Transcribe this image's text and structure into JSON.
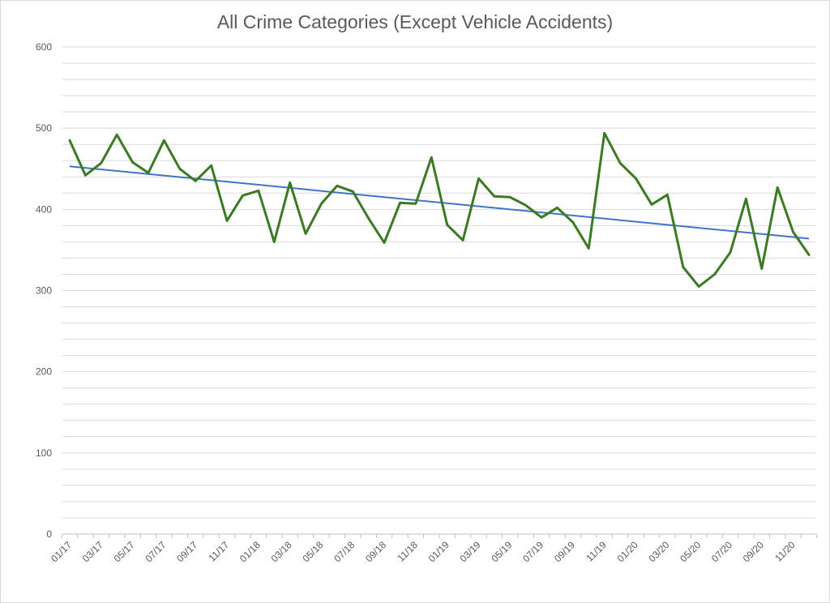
{
  "chart_data": {
    "type": "line",
    "title": "All Crime Categories (Except Vehicle Accidents)",
    "xlabel": "",
    "ylabel": "",
    "ylim": [
      0,
      600
    ],
    "yticks": [
      0,
      100,
      200,
      300,
      400,
      500,
      600
    ],
    "grid": true,
    "legend": "none",
    "x_tick_labels": [
      "01/17",
      "03/17",
      "05/17",
      "07/17",
      "09/17",
      "11/17",
      "01/18",
      "03/18",
      "05/18",
      "07/18",
      "09/18",
      "11/18",
      "01/19",
      "03/19",
      "05/19",
      "07/19",
      "09/19",
      "11/19",
      "01/20",
      "03/20",
      "05/20",
      "07/20",
      "09/20",
      "11/20"
    ],
    "x": [
      "01/17",
      "02/17",
      "03/17",
      "04/17",
      "05/17",
      "06/17",
      "07/17",
      "08/17",
      "09/17",
      "10/17",
      "11/17",
      "12/17",
      "01/18",
      "02/18",
      "03/18",
      "04/18",
      "05/18",
      "06/18",
      "07/18",
      "08/18",
      "09/18",
      "10/18",
      "11/18",
      "12/18",
      "01/19",
      "02/19",
      "03/19",
      "04/19",
      "05/19",
      "06/19",
      "07/19",
      "08/19",
      "09/19",
      "10/19",
      "11/19",
      "12/19",
      "01/20",
      "02/20",
      "03/20",
      "04/20",
      "05/20",
      "06/20",
      "07/20",
      "08/20",
      "09/20",
      "10/20",
      "11/20",
      "12/20"
    ],
    "series": [
      {
        "color": "#3a7a23",
        "values": [
          485,
          442,
          457,
          492,
          458,
          445,
          485,
          450,
          435,
          454,
          386,
          417,
          423,
          360,
          433,
          370,
          407,
          429,
          422,
          389,
          359,
          408,
          407,
          464,
          381,
          362,
          438,
          416,
          415,
          405,
          390,
          402,
          384,
          352,
          494,
          457,
          438,
          406,
          418,
          329,
          305,
          320,
          347,
          413,
          327,
          427,
          372,
          344
        ]
      }
    ],
    "trendline": {
      "type": "linear",
      "color": "#4472c4",
      "start_value": 453,
      "end_value": 364
    }
  }
}
